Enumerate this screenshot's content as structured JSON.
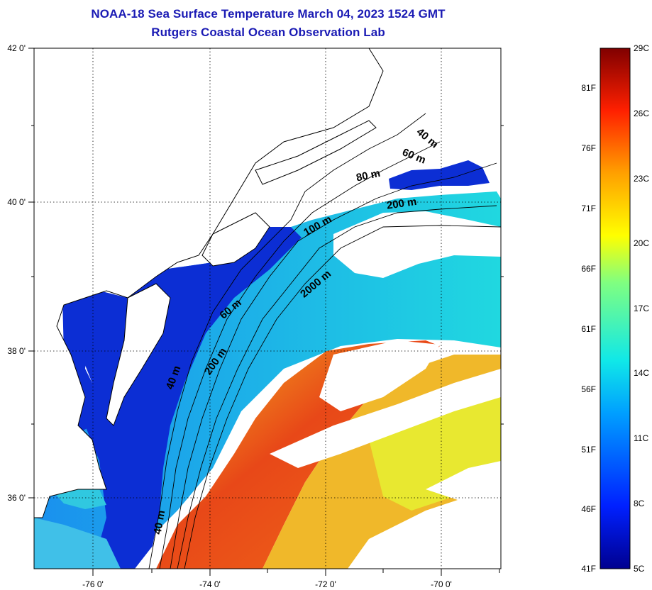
{
  "title": {
    "line1": "NOAA-18 Sea Surface Temperature March 04, 2023 1524 GMT",
    "line2": "Rutgers Coastal Ocean Observation Lab"
  },
  "map": {
    "lon_ticks": [
      "-76 0'",
      "-74 0'",
      "-72 0'",
      "-70 0'"
    ],
    "lat_ticks": [
      "42 0'",
      "40 0'",
      "38 0'",
      "36 0'"
    ],
    "contour_labels": [
      "40 m",
      "60 m",
      "80 m",
      "200 m",
      "100 m",
      "2000 m",
      "60 m",
      "200 m",
      "40 m",
      "40 m"
    ]
  },
  "colorbar": {
    "fahrenheit": [
      "81F",
      "76F",
      "71F",
      "66F",
      "61F",
      "56F",
      "51F",
      "46F",
      "41F"
    ],
    "celsius": [
      "29C",
      "26C",
      "23C",
      "20C",
      "17C",
      "14C",
      "11C",
      "8C",
      "5C"
    ]
  },
  "colors": {
    "title": "#1a1ab4",
    "land": "#ffffff",
    "cold": "#0a2bd0",
    "shelf": "#1f58e8",
    "slope": "#1fc8e8",
    "warm_front": "#f0d020",
    "gulf_stream": "#e83c14"
  }
}
